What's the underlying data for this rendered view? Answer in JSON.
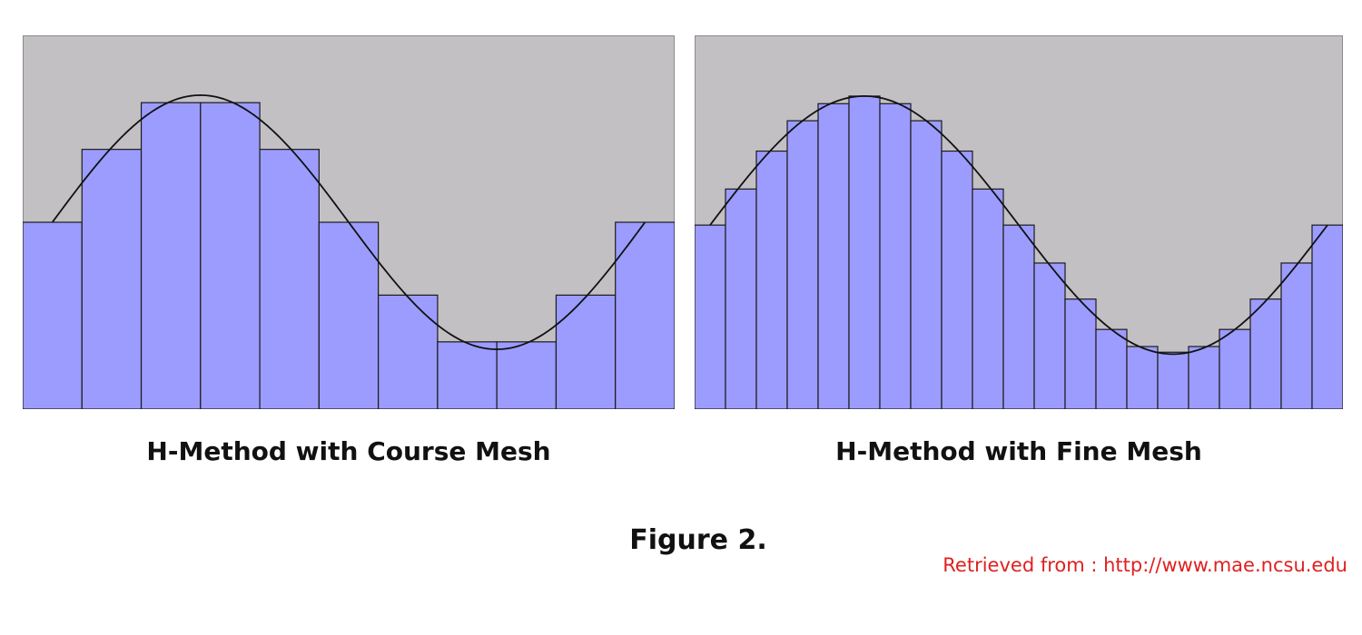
{
  "colors": {
    "background": "#c3c0c4",
    "bar_fill": "#9c9cff",
    "bar_stroke": "#1a1a1a",
    "curve": "#111111",
    "source_text": "#e02020"
  },
  "panels": [
    {
      "id": "left",
      "caption": "H-Method with Course Mesh",
      "y_range": [
        -0.36,
        1.64
      ],
      "bar_values": [
        0.64,
        1.03,
        1.28,
        1.28,
        1.03,
        0.64,
        0.25,
        0.0,
        0.0,
        0.25,
        0.64
      ],
      "curve_x_range": [
        0.5,
        10.5
      ],
      "curve": {
        "center": 0.64,
        "amplitude": 0.68,
        "period": 10
      }
    },
    {
      "id": "right",
      "caption": "H-Method with Fine Mesh",
      "y_range": [
        -0.33,
        1.64
      ],
      "bar_values": [
        0.64,
        0.83,
        1.03,
        1.19,
        1.28,
        1.32,
        1.28,
        1.19,
        1.03,
        0.83,
        0.64,
        0.44,
        0.25,
        0.09,
        0.0,
        -0.03,
        0.0,
        0.09,
        0.25,
        0.44,
        0.64
      ],
      "curve_x_range": [
        0.5,
        20.5
      ],
      "curve": {
        "center": 0.64,
        "amplitude": 0.68,
        "period": 20
      }
    }
  ],
  "figure_label": "Figure 2.",
  "source_credit": "Retrieved from : http://www.mae.ncsu.edu"
}
